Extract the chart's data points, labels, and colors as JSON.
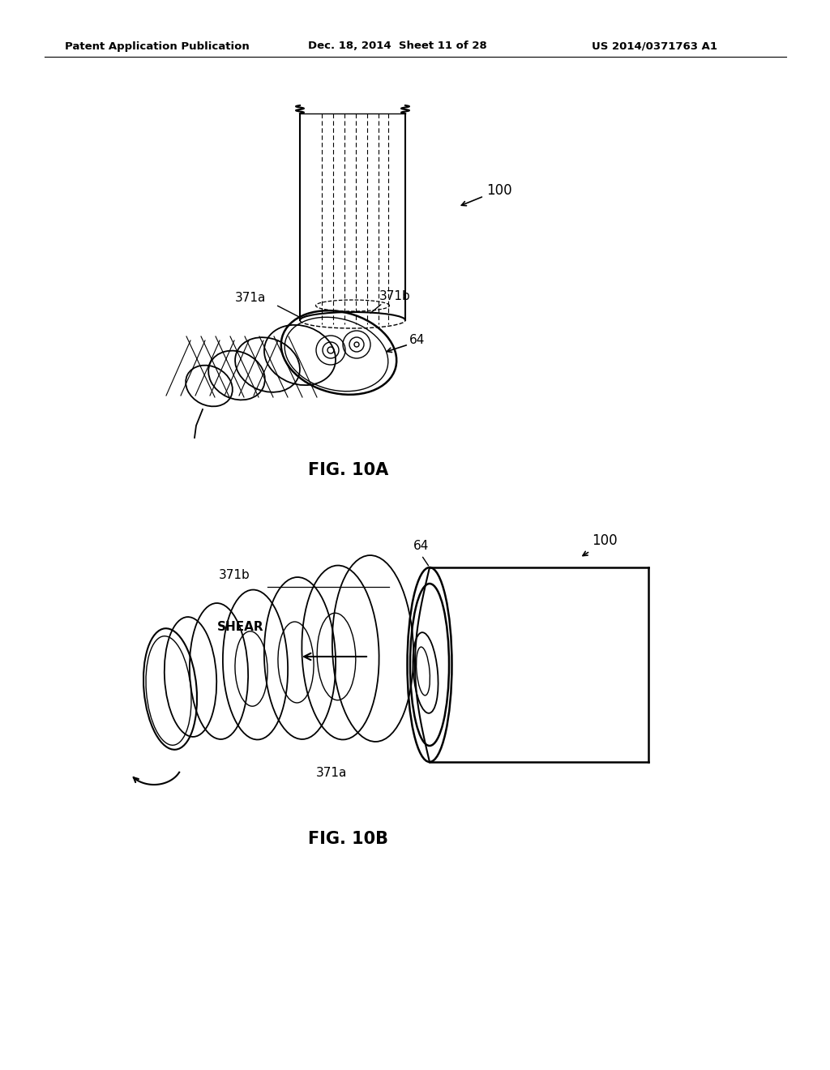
{
  "header_left": "Patent Application Publication",
  "header_center": "Dec. 18, 2014  Sheet 11 of 28",
  "header_right": "US 2014/0371763 A1",
  "fig10a_label": "FIG. 10A",
  "fig10b_label": "FIG. 10B",
  "bg_color": "#ffffff",
  "line_color": "#000000"
}
